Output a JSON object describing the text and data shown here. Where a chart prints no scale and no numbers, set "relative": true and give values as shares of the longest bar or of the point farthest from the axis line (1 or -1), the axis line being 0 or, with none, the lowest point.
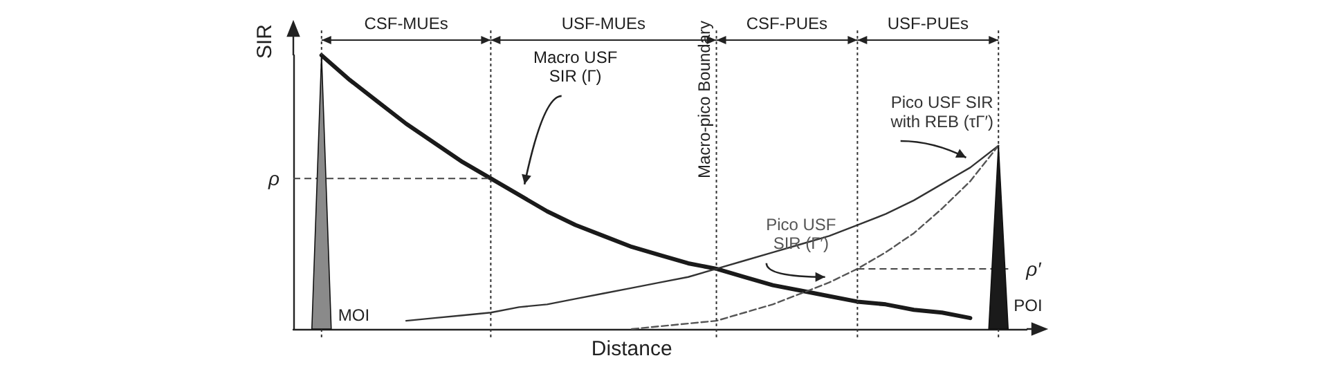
{
  "chart_data": {
    "type": "line",
    "relative": true,
    "xlabel": "Distance",
    "ylabel": "SIR",
    "categories": [
      null,
      null,
      null,
      null,
      null,
      null,
      null,
      null,
      null,
      null,
      null,
      null,
      null,
      null,
      null,
      null,
      null,
      null,
      null,
      null,
      null,
      null,
      null,
      null,
      null,
      null,
      null
    ],
    "series": [
      {
        "name": "Macro USF\nSIR (Γ)",
        "color": "#1a1a1a",
        "values": [
          null,
          1.0,
          0.91,
          0.83,
          0.75,
          0.68,
          0.61,
          0.55,
          0.49,
          0.43,
          0.38,
          0.34,
          0.3,
          0.27,
          0.24,
          0.22,
          0.19,
          0.16,
          0.14,
          0.12,
          0.1,
          0.09,
          0.07,
          0.06,
          0.04,
          null,
          null
        ]
      },
      {
        "name": "Pico USF SIR\nwith REB (τΓ′)",
        "color": "#333333",
        "values": [
          null,
          null,
          null,
          null,
          0.03,
          0.04,
          0.05,
          0.06,
          0.08,
          0.09,
          0.11,
          0.13,
          0.15,
          0.17,
          0.19,
          0.22,
          0.25,
          0.28,
          0.31,
          0.34,
          0.38,
          0.42,
          0.47,
          0.53,
          0.59,
          0.67,
          null
        ]
      },
      {
        "name": "Pico USF\nSIR (Γ′)",
        "color": "#555555",
        "line_style": "dashed",
        "values": [
          null,
          null,
          null,
          null,
          null,
          null,
          null,
          null,
          null,
          null,
          null,
          null,
          0.0,
          0.01,
          0.02,
          0.03,
          0.06,
          0.09,
          0.13,
          0.17,
          0.22,
          0.28,
          0.35,
          0.44,
          0.54,
          0.67,
          null
        ]
      }
    ],
    "ref_lines": [
      {
        "axis": "y",
        "value": 0.55,
        "label": "ρ",
        "line_style": "dashed"
      },
      {
        "axis": "y",
        "value": 0.22,
        "label": "ρ′",
        "line_style": "dashed"
      }
    ],
    "annotations": [
      "CSF-MUEs",
      "USF-MUEs",
      "CSF-PUEs",
      "USF-PUEs",
      "MOI",
      "POI",
      "Macro-pico Boundary"
    ],
    "tick_labels": false,
    "grid": "x",
    "legend": false,
    "marker": "none",
    "line_style": "solid"
  }
}
